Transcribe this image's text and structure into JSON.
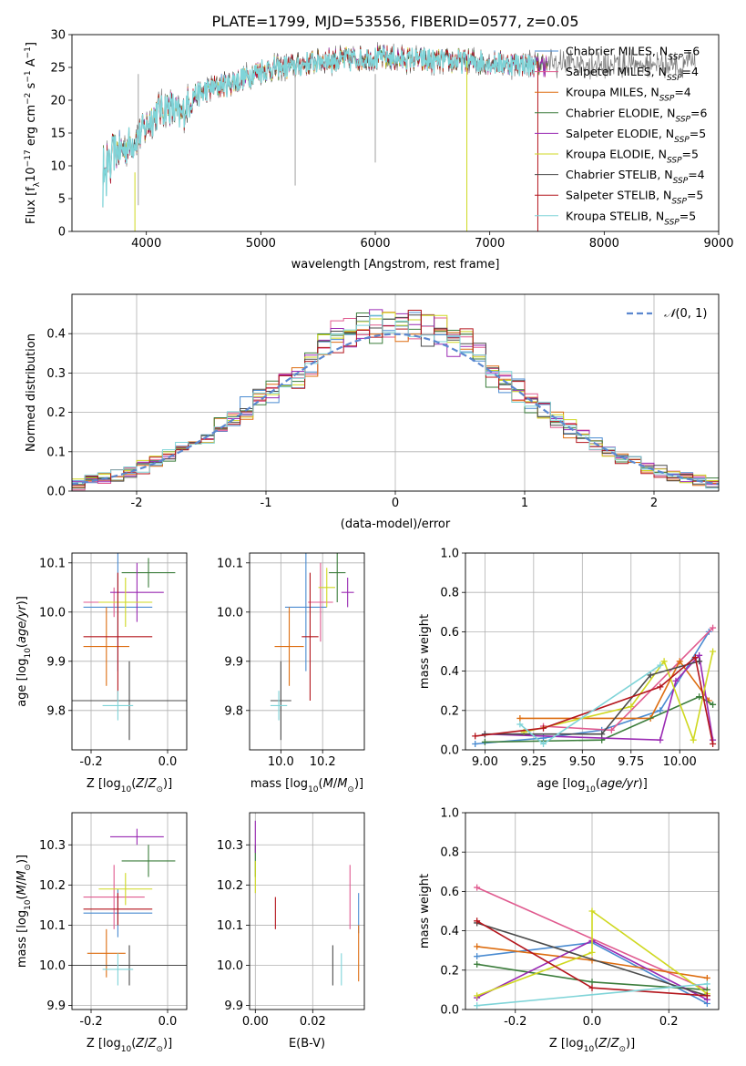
{
  "figure_title": "PLATE=1799, MJD=53556, FIBERID=0577, z=0.05",
  "colors": {
    "cMiles": "#4a8bd1",
    "sMiles": "#e05a8f",
    "kMiles": "#dd6d10",
    "cElodie": "#3b7d3b",
    "sElodie": "#9a2ab3",
    "kElodie": "#cfd820",
    "cStelib": "#4b4b4b",
    "sStelib": "#b4151c",
    "kStelib": "#7fd4d8",
    "gauss": "#5b87cf",
    "grid": "#b0b0b0"
  },
  "chart_data": [
    {
      "type": "line",
      "title": "PLATE=1799, MJD=53556, FIBERID=0577, z=0.05",
      "xlabel": "wavelength [Angstrom, rest frame]",
      "ylabel": "Flux [f_λ 10^-17 erg cm^-2 s^-1 A^-1]",
      "xlim": [
        3350,
        9000
      ],
      "ylim": [
        0,
        30
      ],
      "xticks": [
        4000,
        5000,
        6000,
        7000,
        8000,
        9000
      ],
      "yticks": [
        0,
        5,
        10,
        15,
        20,
        25,
        30
      ],
      "grid": false,
      "legend": "top-right",
      "legend_entries": [
        "Chabrier MILES, N_SSP=6",
        "Salpeter MILES, N_SSP=4",
        "Kroupa MILES, N_SSP=4",
        "Chabrier ELODIE, N_SSP=6",
        "Salpeter ELODIE, N_SSP=5",
        "Kroupa ELODIE, N_SSP=5",
        "Chabrier STELIB, N_SSP=4",
        "Salpeter STELIB, N_SSP=5",
        "Kroupa STELIB, N_SSP=5"
      ],
      "continuum": {
        "x": [
          3620,
          3700,
          3800,
          3900,
          4000,
          4100,
          4200,
          4300,
          4400,
          4600,
          4800,
          5000,
          5200,
          5500,
          6000,
          6500,
          7000,
          7200,
          7400
        ],
        "y": [
          10.5,
          12,
          12.5,
          14,
          16,
          18.5,
          19,
          17.5,
          20.5,
          22,
          23,
          24.5,
          25,
          26,
          26.5,
          26,
          25.8,
          25.5,
          25.5
        ]
      }
    },
    {
      "type": "histogram",
      "xlabel": "(data-model)/error",
      "ylabel": "Normed distribution",
      "xlim": [
        -2.5,
        2.5
      ],
      "ylim": [
        0,
        0.5
      ],
      "xticks": [
        -2,
        -1,
        0,
        1,
        2
      ],
      "yticks": [
        0.0,
        0.1,
        0.2,
        0.3,
        0.4
      ],
      "grid": true,
      "legend": "top-right",
      "legend_entries": [
        "N(0,1)"
      ],
      "bin_width": 0.1
    },
    {
      "type": "scatter",
      "xlabel": "Z [log10(Z/Z_sun)]",
      "ylabel": "age [log10(age/yr)]",
      "xlim": [
        -0.25,
        0.05
      ],
      "ylim": [
        9.72,
        10.12
      ],
      "xticks": [
        -0.2,
        0.0
      ],
      "yticks": [
        9.8,
        9.9,
        10.0,
        10.1
      ],
      "grid": true,
      "points": [
        {
          "x": -0.13,
          "y": 10.01,
          "xerr": 0.09,
          "yerr": 0.13,
          "model": "cMiles"
        },
        {
          "x": -0.14,
          "y": 10.02,
          "xerr": 0.08,
          "yerr": 0.03,
          "model": "sMiles"
        },
        {
          "x": -0.16,
          "y": 9.93,
          "xerr": 0.06,
          "yerr": 0.08,
          "model": "kMiles"
        },
        {
          "x": -0.05,
          "y": 10.08,
          "xerr": 0.07,
          "yerr": 0.03,
          "model": "cElodie"
        },
        {
          "x": -0.08,
          "y": 10.04,
          "xerr": 0.07,
          "yerr": 0.06,
          "model": "sElodie"
        },
        {
          "x": -0.11,
          "y": 10.02,
          "xerr": 0.07,
          "yerr": 0.05,
          "model": "kElodie"
        },
        {
          "x": -0.1,
          "y": 9.82,
          "xerr": 0.15,
          "yerr": 0.08,
          "model": "cStelib"
        },
        {
          "x": -0.13,
          "y": 9.95,
          "xerr": 0.09,
          "yerr": 0.13,
          "model": "sStelib"
        },
        {
          "x": -0.13,
          "y": 9.81,
          "xerr": 0.04,
          "yerr": 0.03,
          "model": "kStelib"
        }
      ]
    },
    {
      "type": "scatter",
      "xlabel": "mass [log10(M/M_sun)]",
      "ylabel": "",
      "xlim": [
        9.85,
        10.4
      ],
      "ylim": [
        9.72,
        10.12
      ],
      "xticks": [
        10.0,
        10.2
      ],
      "yticks": [
        9.8,
        9.9,
        10.0,
        10.1
      ],
      "grid": true,
      "points": [
        {
          "x": 10.12,
          "y": 10.01,
          "xerr": 0.1,
          "yerr": 0.13,
          "model": "cMiles"
        },
        {
          "x": 10.19,
          "y": 10.02,
          "xerr": 0.06,
          "yerr": 0.08,
          "model": "sMiles"
        },
        {
          "x": 10.04,
          "y": 9.93,
          "xerr": 0.07,
          "yerr": 0.08,
          "model": "kMiles"
        },
        {
          "x": 10.27,
          "y": 10.08,
          "xerr": 0.04,
          "yerr": 0.06,
          "model": "cElodie"
        },
        {
          "x": 10.32,
          "y": 10.04,
          "xerr": 0.03,
          "yerr": 0.03,
          "model": "sElodie"
        },
        {
          "x": 10.22,
          "y": 10.05,
          "xerr": 0.04,
          "yerr": 0.04,
          "model": "kElodie"
        },
        {
          "x": 10.0,
          "y": 9.82,
          "xerr": 0.05,
          "yerr": 0.08,
          "model": "cStelib"
        },
        {
          "x": 10.14,
          "y": 9.95,
          "xerr": 0.04,
          "yerr": 0.13,
          "model": "sStelib"
        },
        {
          "x": 9.99,
          "y": 9.81,
          "xerr": 0.04,
          "yerr": 0.03,
          "model": "kStelib"
        }
      ]
    },
    {
      "type": "line",
      "xlabel": "age [log10(age/yr)]",
      "ylabel": "mass weight",
      "xlim": [
        8.9,
        10.2
      ],
      "ylim": [
        0,
        1.0
      ],
      "xticks": [
        9.0,
        9.25,
        9.5,
        9.75,
        10.0
      ],
      "yticks": [
        0.0,
        0.2,
        0.4,
        0.6,
        0.8,
        1.0
      ],
      "grid": true,
      "series": [
        {
          "model": "cMiles",
          "x": [
            8.95,
            9.3,
            9.6,
            9.9,
            10.15
          ],
          "y": [
            0.03,
            0.06,
            0.1,
            0.2,
            0.6
          ]
        },
        {
          "model": "sMiles",
          "x": [
            9.3,
            9.65,
            10.17
          ],
          "y": [
            0.12,
            0.1,
            0.62
          ]
        },
        {
          "model": "kMiles",
          "x": [
            9.18,
            9.85,
            10.0,
            10.15
          ],
          "y": [
            0.16,
            0.16,
            0.45,
            0.25
          ]
        },
        {
          "model": "cElodie",
          "x": [
            9.0,
            9.6,
            10.1,
            10.17
          ],
          "y": [
            0.04,
            0.05,
            0.27,
            0.23
          ]
        },
        {
          "model": "sElodie",
          "x": [
            9.0,
            9.9,
            9.98,
            10.1,
            10.17
          ],
          "y": [
            0.08,
            0.05,
            0.35,
            0.48,
            0.05
          ]
        },
        {
          "model": "kElodie",
          "x": [
            9.2,
            9.75,
            9.92,
            10.07,
            10.17
          ],
          "y": [
            0.09,
            0.22,
            0.45,
            0.05,
            0.5
          ]
        },
        {
          "model": "cStelib",
          "x": [
            9.0,
            9.6,
            9.85,
            10.1
          ],
          "y": [
            0.08,
            0.08,
            0.38,
            0.45
          ]
        },
        {
          "model": "sStelib",
          "x": [
            8.95,
            9.3,
            9.9,
            10.08,
            10.17
          ],
          "y": [
            0.07,
            0.11,
            0.32,
            0.47,
            0.03
          ]
        },
        {
          "model": "kStelib",
          "x": [
            9.18,
            9.3,
            9.9
          ],
          "y": [
            0.13,
            0.03,
            0.43
          ]
        }
      ]
    },
    {
      "type": "scatter",
      "xlabel": "Z [log10(Z/Z_sun)]",
      "ylabel": "mass [log10(M/M_sun)]",
      "xlim": [
        -0.25,
        0.05
      ],
      "ylim": [
        9.89,
        10.38
      ],
      "xticks": [
        -0.2,
        0.0
      ],
      "yticks": [
        9.9,
        10.0,
        10.1,
        10.2,
        10.3
      ],
      "grid": true,
      "points": [
        {
          "x": -0.13,
          "y": 10.13,
          "xerr": 0.09,
          "yerr": 0.06,
          "model": "cMiles"
        },
        {
          "x": -0.14,
          "y": 10.17,
          "xerr": 0.08,
          "yerr": 0.08,
          "model": "sMiles"
        },
        {
          "x": -0.16,
          "y": 10.03,
          "xerr": 0.05,
          "yerr": 0.06,
          "model": "kMiles"
        },
        {
          "x": -0.05,
          "y": 10.26,
          "xerr": 0.07,
          "yerr": 0.04,
          "model": "cElodie"
        },
        {
          "x": -0.08,
          "y": 10.32,
          "xerr": 0.07,
          "yerr": 0.02,
          "model": "sElodie"
        },
        {
          "x": -0.11,
          "y": 10.19,
          "xerr": 0.07,
          "yerr": 0.04,
          "model": "kElodie"
        },
        {
          "x": -0.1,
          "y": 10.0,
          "xerr": 0.15,
          "yerr": 0.05,
          "model": "cStelib"
        },
        {
          "x": -0.13,
          "y": 10.14,
          "xerr": 0.09,
          "yerr": 0.04,
          "model": "sStelib"
        },
        {
          "x": -0.13,
          "y": 9.99,
          "xerr": 0.04,
          "yerr": 0.04,
          "model": "kStelib"
        }
      ]
    },
    {
      "type": "scatter",
      "xlabel": "E(B-V)",
      "ylabel": "",
      "xlim": [
        -0.002,
        0.038
      ],
      "ylim": [
        9.89,
        10.38
      ],
      "xticks": [
        0.0,
        0.02
      ],
      "yticks": [
        9.9,
        10.0,
        10.1,
        10.2,
        10.3
      ],
      "grid": true,
      "points": [
        {
          "x": 0.036,
          "y": 10.13,
          "xerr": 0,
          "yerr": 0.05,
          "model": "cMiles"
        },
        {
          "x": 0.033,
          "y": 10.17,
          "xerr": 0,
          "yerr": 0.08,
          "model": "sMiles"
        },
        {
          "x": 0.036,
          "y": 10.03,
          "xerr": 0,
          "yerr": 0.07,
          "model": "kMiles"
        },
        {
          "x": 0.0,
          "y": 10.26,
          "xerr": 0,
          "yerr": 0.04,
          "model": "cElodie"
        },
        {
          "x": 0.0,
          "y": 10.32,
          "xerr": 0,
          "yerr": 0.04,
          "model": "sElodie"
        },
        {
          "x": 0.0,
          "y": 10.22,
          "xerr": 0,
          "yerr": 0.04,
          "model": "kElodie"
        },
        {
          "x": 0.027,
          "y": 10.0,
          "xerr": 0,
          "yerr": 0.05,
          "model": "cStelib"
        },
        {
          "x": 0.007,
          "y": 10.13,
          "xerr": 0,
          "yerr": 0.04,
          "model": "sStelib"
        },
        {
          "x": 0.03,
          "y": 9.99,
          "xerr": 0,
          "yerr": 0.04,
          "model": "kStelib"
        }
      ]
    },
    {
      "type": "line",
      "xlabel": "Z [log10(Z/Z_sun)]",
      "ylabel": "mass weight",
      "xlim": [
        -0.33,
        0.33
      ],
      "ylim": [
        0,
        1.0
      ],
      "xticks": [
        -0.2,
        0.0,
        0.2
      ],
      "yticks": [
        0.0,
        0.2,
        0.4,
        0.6,
        0.8,
        1.0
      ],
      "grid": true,
      "series": [
        {
          "model": "cMiles",
          "x": [
            -0.3,
            0.0,
            0.3
          ],
          "y": [
            0.27,
            0.34,
            0.03
          ]
        },
        {
          "model": "sMiles",
          "x": [
            -0.3,
            0.3
          ],
          "y": [
            0.62,
            0.1
          ]
        },
        {
          "model": "kMiles",
          "x": [
            -0.3,
            0.0,
            0.3
          ],
          "y": [
            0.32,
            0.25,
            0.16
          ]
        },
        {
          "model": "cElodie",
          "x": [
            -0.3,
            0.0,
            0.3
          ],
          "y": [
            0.23,
            0.14,
            0.1
          ]
        },
        {
          "model": "sElodie",
          "x": [
            -0.3,
            0.0,
            0.3
          ],
          "y": [
            0.06,
            0.35,
            0.05
          ]
        },
        {
          "model": "kElodie",
          "x": [
            -0.3,
            0.0,
            0.0,
            0.3
          ],
          "y": [
            0.07,
            0.29,
            0.5,
            0.08
          ]
        },
        {
          "model": "cStelib",
          "x": [
            -0.3,
            0.3
          ],
          "y": [
            0.44,
            0.07
          ]
        },
        {
          "model": "sStelib",
          "x": [
            -0.3,
            0.0,
            0.3
          ],
          "y": [
            0.45,
            0.11,
            0.07
          ]
        },
        {
          "model": "kStelib",
          "x": [
            -0.3,
            0.3
          ],
          "y": [
            0.02,
            0.13
          ]
        }
      ]
    }
  ]
}
